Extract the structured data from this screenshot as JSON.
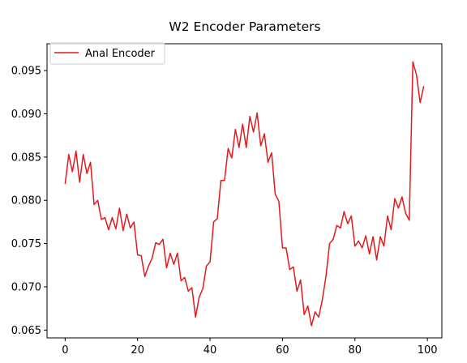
{
  "chart_data": {
    "type": "line",
    "title": "W2  Encoder Parameters",
    "xlabel": "",
    "ylabel": "",
    "xlim": [
      -5,
      104
    ],
    "ylim": [
      0.0641,
      0.0981
    ],
    "xticks": [
      0,
      20,
      40,
      60,
      80,
      100
    ],
    "xtick_labels": [
      "0",
      "20",
      "40",
      "60",
      "80",
      "100"
    ],
    "yticks": [
      0.065,
      0.07,
      0.075,
      0.08,
      0.085,
      0.09,
      0.095
    ],
    "ytick_labels": [
      "0.065",
      "0.070",
      "0.075",
      "0.080",
      "0.085",
      "0.090",
      "0.095"
    ],
    "grid": false,
    "legend": {
      "position": "top-left"
    },
    "series": [
      {
        "name": "Anal Encoder",
        "color": "#e31a1c",
        "x": [
          0,
          1,
          2,
          3,
          4,
          5,
          6,
          7,
          8,
          9,
          10,
          11,
          12,
          13,
          14,
          15,
          16,
          17,
          18,
          19,
          20,
          21,
          22,
          23,
          24,
          25,
          26,
          27,
          28,
          29,
          30,
          31,
          32,
          33,
          34,
          35,
          36,
          37,
          38,
          39,
          40,
          41,
          42,
          43,
          44,
          45,
          46,
          47,
          48,
          49,
          50,
          51,
          52,
          53,
          54,
          55,
          56,
          57,
          58,
          59,
          60,
          61,
          62,
          63,
          64,
          65,
          66,
          67,
          68,
          69,
          70,
          71,
          72,
          73,
          74,
          75,
          76,
          77,
          78,
          79,
          80,
          81,
          82,
          83,
          84,
          85,
          86,
          87,
          88,
          89,
          90,
          91,
          92,
          93,
          94,
          95,
          96,
          97,
          98,
          99
        ],
        "values": [
          0.0819,
          0.0853,
          0.0833,
          0.0857,
          0.0821,
          0.0853,
          0.0831,
          0.0844,
          0.0795,
          0.08,
          0.0778,
          0.078,
          0.0766,
          0.078,
          0.0767,
          0.0791,
          0.0765,
          0.0784,
          0.0768,
          0.0775,
          0.0737,
          0.0736,
          0.0712,
          0.0724,
          0.0733,
          0.0751,
          0.0749,
          0.0755,
          0.0722,
          0.0739,
          0.0726,
          0.0739,
          0.0707,
          0.0711,
          0.0695,
          0.0699,
          0.0665,
          0.0688,
          0.0698,
          0.0724,
          0.0729,
          0.0775,
          0.0779,
          0.0823,
          0.0823,
          0.086,
          0.0849,
          0.0882,
          0.0861,
          0.0888,
          0.0861,
          0.0897,
          0.0879,
          0.0901,
          0.0863,
          0.0877,
          0.0844,
          0.0855,
          0.0807,
          0.0799,
          0.0745,
          0.0745,
          0.072,
          0.0723,
          0.0695,
          0.0708,
          0.0668,
          0.0678,
          0.0655,
          0.0671,
          0.0665,
          0.0685,
          0.0712,
          0.075,
          0.0755,
          0.0771,
          0.0768,
          0.0787,
          0.0773,
          0.0782,
          0.0747,
          0.0753,
          0.0745,
          0.0759,
          0.0738,
          0.0758,
          0.0731,
          0.0758,
          0.0747,
          0.0782,
          0.0766,
          0.0802,
          0.0791,
          0.0804,
          0.0785,
          0.0777,
          0.096,
          0.0945,
          0.0913,
          0.0932
        ]
      }
    ]
  }
}
